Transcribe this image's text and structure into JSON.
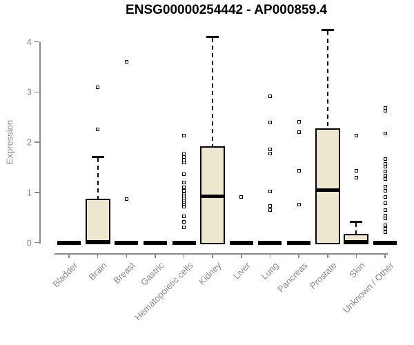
{
  "chart_data": {
    "type": "boxplot",
    "title": "ENSG00000254442 - AP000859.4",
    "ylabel": "Expression",
    "xlabel": "",
    "yticks": [
      0,
      1,
      2,
      3,
      4
    ],
    "ylim": [
      0,
      4.3
    ],
    "grid": false,
    "legend": "none",
    "colors": {
      "box_fill": "#EDE7CD",
      "box_border": "#000000",
      "median": "#000000",
      "axis": "#8a8a8a",
      "title": "#000000"
    },
    "categories": [
      "Bladder",
      "Brain",
      "Breast",
      "Gastric",
      "Hematopoietic cells",
      "Kidney",
      "Liver",
      "Lung",
      "Pancreas",
      "Prostate",
      "Skin",
      "Unknown / Other"
    ],
    "boxes": [
      {
        "category": "Bladder",
        "q1": 0,
        "median": 0,
        "q3": 0,
        "whisker_low": 0,
        "whisker_high": 0,
        "outliers": []
      },
      {
        "category": "Brain",
        "q1": 0,
        "median": 0.02,
        "q3": 0.87,
        "whisker_low": 0,
        "whisker_high": 1.7,
        "outliers": [
          3.09,
          2.25
        ]
      },
      {
        "category": "Breast",
        "q1": 0,
        "median": 0,
        "q3": 0,
        "whisker_low": 0,
        "whisker_high": 0,
        "outliers": [
          3.6,
          0.86
        ]
      },
      {
        "category": "Gastric",
        "q1": 0,
        "median": 0,
        "q3": 0,
        "whisker_low": 0,
        "whisker_high": 0,
        "outliers": []
      },
      {
        "category": "Hematopoietic cells",
        "q1": 0,
        "median": 0,
        "q3": 0,
        "whisker_low": 0,
        "whisker_high": 0,
        "outliers": [
          2.13,
          1.76,
          1.71,
          1.65,
          1.6,
          1.36,
          1.2,
          1.1,
          1.03,
          0.96,
          0.92,
          0.88,
          0.84,
          0.8,
          0.76,
          0.72,
          0.52,
          0.41,
          0.3
        ]
      },
      {
        "category": "Kidney",
        "q1": 0,
        "median": 0.92,
        "q3": 1.92,
        "whisker_low": 0,
        "whisker_high": 4.09,
        "outliers": []
      },
      {
        "category": "Liver",
        "q1": 0,
        "median": 0,
        "q3": 0,
        "whisker_low": 0,
        "whisker_high": 0,
        "outliers": [
          0.91
        ]
      },
      {
        "category": "Lung",
        "q1": 0,
        "median": 0,
        "q3": 0,
        "whisker_low": 0,
        "whisker_high": 0,
        "outliers": [
          2.91,
          2.39,
          1.85,
          1.77,
          1.02,
          0.73,
          0.64
        ]
      },
      {
        "category": "Pancreas",
        "q1": 0,
        "median": 0,
        "q3": 0,
        "whisker_low": 0,
        "whisker_high": 0,
        "outliers": [
          2.41,
          2.2,
          1.43,
          0.76
        ]
      },
      {
        "category": "Prostate",
        "q1": 0,
        "median": 1.05,
        "q3": 2.28,
        "whisker_low": 0,
        "whisker_high": 4.23,
        "outliers": []
      },
      {
        "category": "Skin",
        "q1": 0,
        "median": 0.02,
        "q3": 0.17,
        "whisker_low": 0,
        "whisker_high": 0.41,
        "outliers": [
          2.13,
          1.43,
          1.29
        ]
      },
      {
        "category": "Unknown / Other",
        "q1": 0,
        "median": 0,
        "q3": 0,
        "whisker_low": 0,
        "whisker_high": 0,
        "outliers": [
          2.68,
          2.62,
          2.17,
          1.67,
          1.57,
          1.51,
          1.42,
          1.33,
          1.26,
          1.12,
          1.03,
          0.91,
          0.78,
          0.64,
          0.53,
          0.48,
          0.34,
          0.27,
          0.2
        ]
      }
    ]
  }
}
